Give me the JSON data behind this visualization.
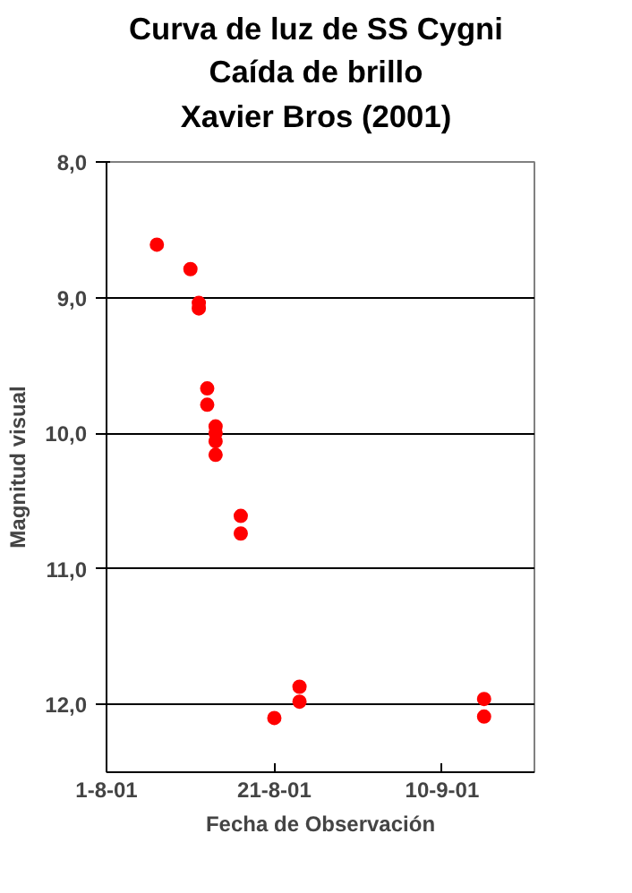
{
  "chart_data": {
    "type": "scatter",
    "title": "Curva de luz de SS Cygni\nCaída de brillo\nXavier Bros (2001)",
    "xlabel": "Fecha de Observación",
    "ylabel": "Magnitud visual",
    "x": [
      "2001-08-07",
      "2001-08-11",
      "2001-08-12",
      "2001-08-12",
      "2001-08-13",
      "2001-08-13",
      "2001-08-14",
      "2001-08-14",
      "2001-08-14",
      "2001-08-14",
      "2001-08-17",
      "2001-08-17",
      "2001-08-21",
      "2001-08-24",
      "2001-08-24",
      "2001-09-15",
      "2001-09-15"
    ],
    "series": [
      {
        "color": "#ff0000",
        "values": [
          8.61,
          8.79,
          9.04,
          9.08,
          9.67,
          9.79,
          9.95,
          10.0,
          10.06,
          10.16,
          10.61,
          10.74,
          12.1,
          11.87,
          11.98,
          11.96,
          12.09
        ]
      }
    ],
    "xlim": [
      "2001-08-01",
      "2001-09-21"
    ],
    "ylim": [
      12.5,
      8.0
    ],
    "xticks": [
      {
        "value": "2001-08-01",
        "label": "1-8-01"
      },
      {
        "value": "2001-08-21",
        "label": "21-8-01"
      },
      {
        "value": "2001-09-10",
        "label": "10-9-01"
      }
    ],
    "yticks": [
      {
        "value": 8,
        "label": "8,0"
      },
      {
        "value": 9,
        "label": "9,0"
      },
      {
        "value": 10,
        "label": "10,0"
      },
      {
        "value": 11,
        "label": "11,0"
      },
      {
        "value": 12,
        "label": "12,0"
      }
    ],
    "grid": "y",
    "marker": "circle"
  }
}
